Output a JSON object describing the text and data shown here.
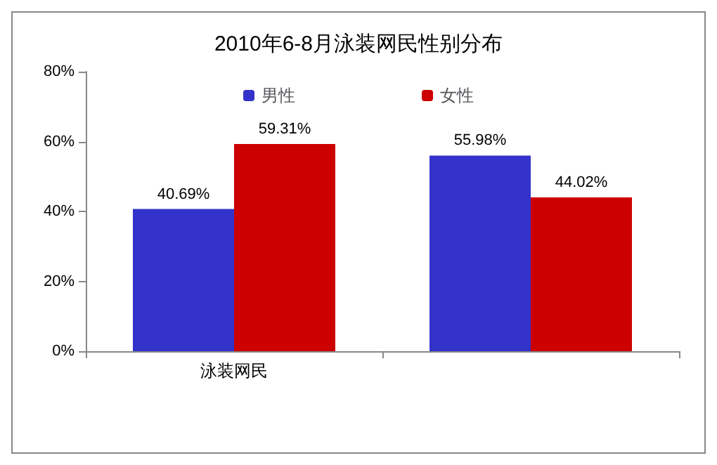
{
  "chart_data": {
    "type": "bar",
    "title": "2010年6-8月泳装网民性别分布",
    "categories": [
      "泳装网民",
      null
    ],
    "series": [
      {
        "name": "男性",
        "color": "#3333cc",
        "values": [
          40.69,
          55.98
        ],
        "value_labels": [
          "40.69%",
          "55.98%"
        ]
      },
      {
        "name": "女性",
        "color": "#cc0000",
        "values": [
          59.31,
          44.02
        ],
        "value_labels": [
          "59.31%",
          "44.02%"
        ]
      }
    ],
    "ylim": [
      0,
      80
    ],
    "yticks": [
      {
        "value": 0,
        "label": "0%"
      },
      {
        "value": 20,
        "label": "20%"
      },
      {
        "value": 40,
        "label": "40%"
      },
      {
        "value": 60,
        "label": "60%"
      },
      {
        "value": 80,
        "label": "80%"
      }
    ],
    "grid": false,
    "legend": "top"
  }
}
